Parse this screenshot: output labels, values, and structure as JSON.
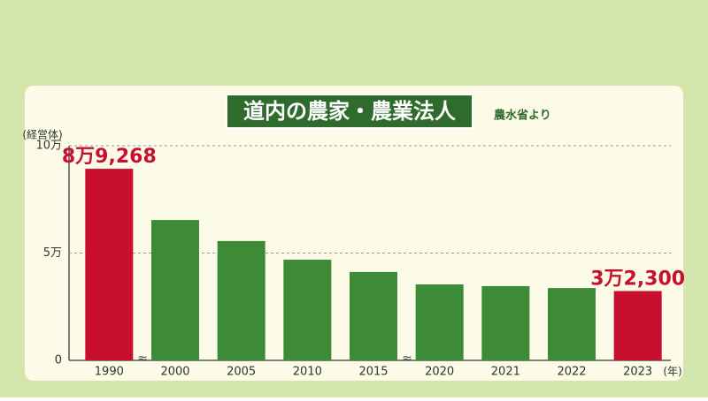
{
  "chart_data": {
    "type": "bar",
    "title": "道内の農家・農業法人",
    "source": "農水省より",
    "y_label": "(経営体)",
    "x_label": "(年)",
    "categories": [
      "1990",
      "2000",
      "2005",
      "2010",
      "2015",
      "2020",
      "2021",
      "2022",
      "2023"
    ],
    "values": [
      89268,
      65400,
      55600,
      46900,
      41200,
      35400,
      34600,
      33700,
      32300
    ],
    "value_labels": [
      "8万9,268",
      null,
      null,
      null,
      null,
      null,
      null,
      null,
      "3万2,300"
    ],
    "colors": [
      "#c8102e",
      "#3d8b37",
      "#3d8b37",
      "#3d8b37",
      "#3d8b37",
      "#3d8b37",
      "#3d8b37",
      "#3d8b37",
      "#c8102e"
    ],
    "ylim": [
      0,
      100000
    ],
    "yticks": [
      0,
      {
        "value": 50000,
        "label": "5万"
      },
      {
        "value": 100000,
        "label": "10万"
      }
    ],
    "grid": true
  }
}
